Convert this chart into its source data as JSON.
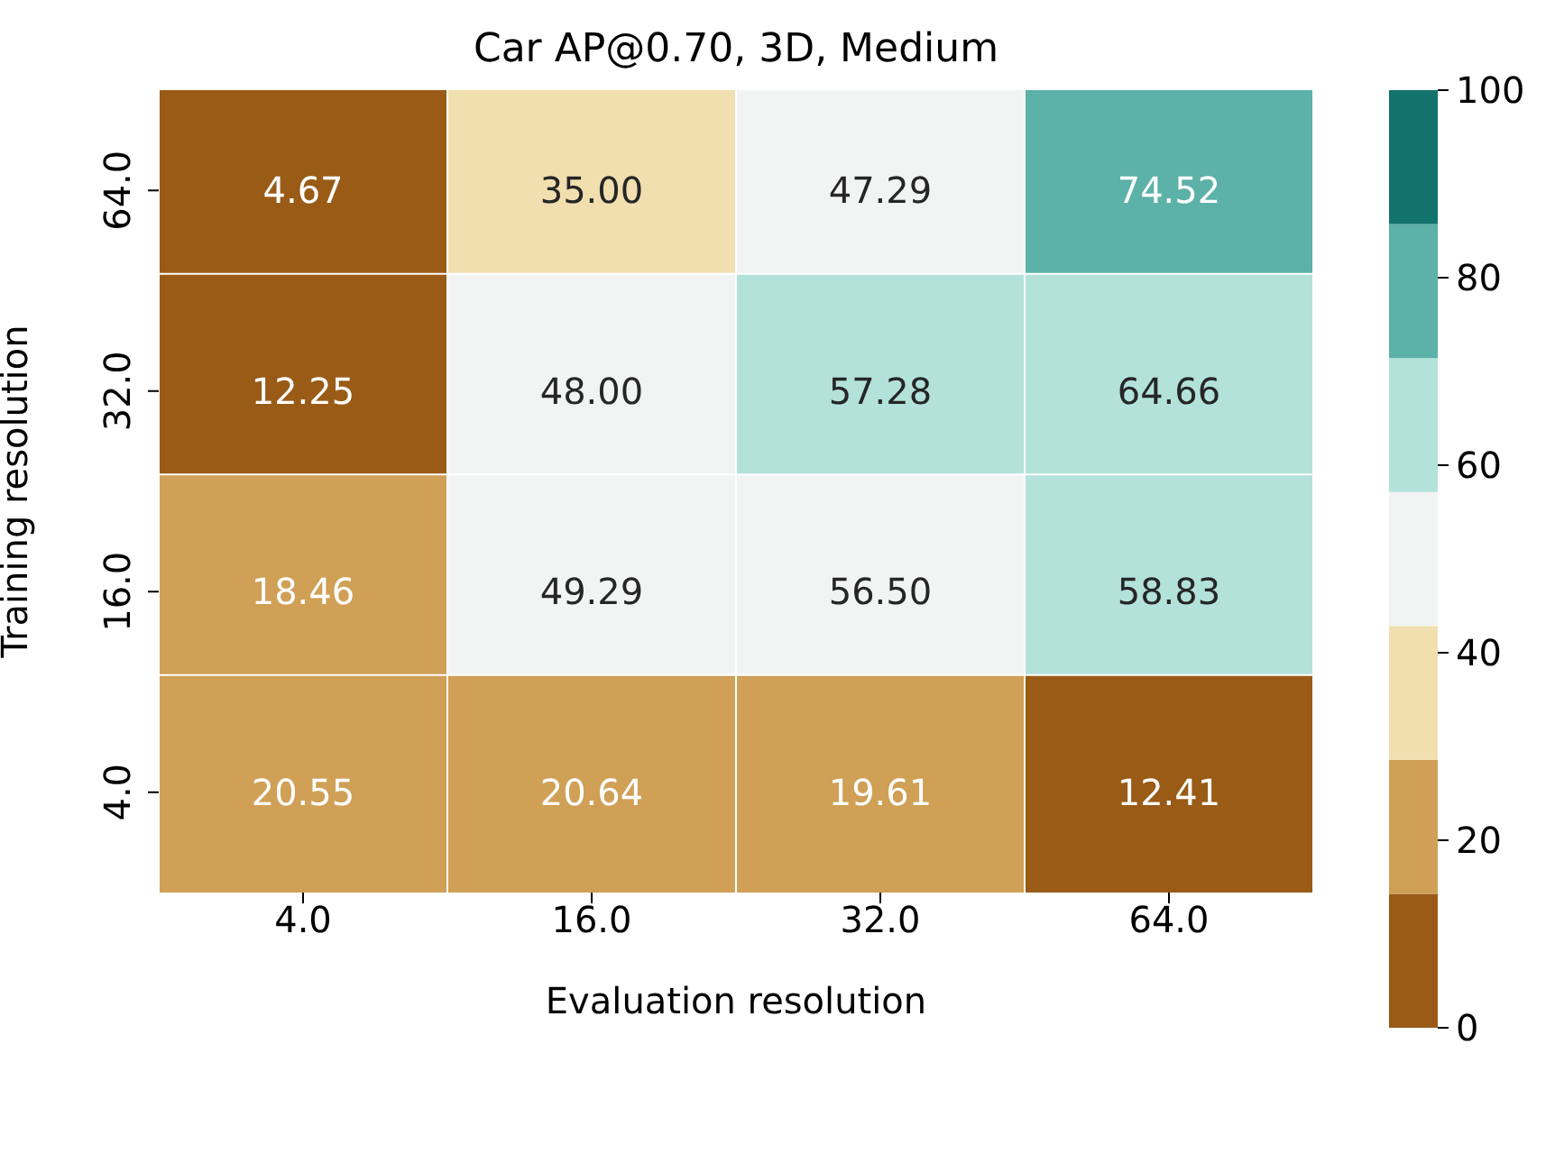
{
  "chart_data": {
    "type": "heatmap",
    "title": "Car AP@0.70, 3D, Medium",
    "xlabel": "Evaluation resolution",
    "ylabel": "Training resolution",
    "categories": [
      "4.0",
      "16.0",
      "32.0",
      "64.0"
    ],
    "y_categories": [
      "64.0",
      "32.0",
      "16.0",
      "4.0"
    ],
    "cells": [
      [
        4.67,
        35.0,
        47.29,
        74.52
      ],
      [
        12.25,
        48.0,
        57.28,
        64.66
      ],
      [
        18.46,
        49.29,
        56.5,
        58.83
      ],
      [
        20.55,
        20.64,
        19.61,
        12.41
      ]
    ],
    "cell_labels": [
      [
        "4.67",
        "35.00",
        "47.29",
        "74.52"
      ],
      [
        "12.25",
        "48.00",
        "57.28",
        "64.66"
      ],
      [
        "18.46",
        "49.29",
        "56.50",
        "58.83"
      ],
      [
        "20.55",
        "20.64",
        "19.61",
        "12.41"
      ]
    ],
    "data_labels": true,
    "clim": [
      0,
      100
    ],
    "cticks": [
      0,
      20,
      40,
      60,
      80,
      100
    ],
    "colors": [
      "#995b16",
      "#cfa055",
      "#f1dfb0",
      "#f2f4f3",
      "#b3e2da",
      "#5cb1a8",
      "#11736b"
    ]
  }
}
